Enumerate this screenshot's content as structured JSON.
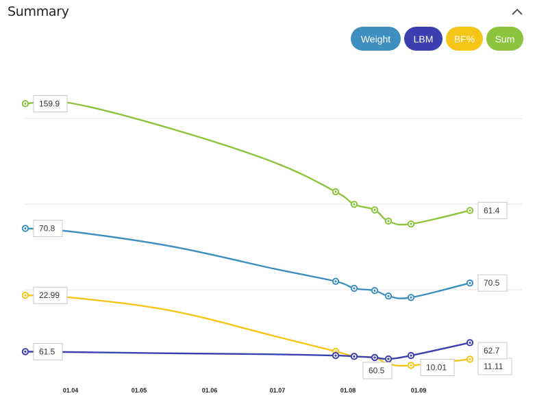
{
  "header": {
    "title": "Summary",
    "collapse_icon": "chevron-up-icon"
  },
  "legend": [
    {
      "label": "Weight",
      "color": "#3e8ebf"
    },
    {
      "label": "LBM",
      "color": "#3b3fb0"
    },
    {
      "label": "BF%",
      "color": "#f5c518"
    },
    {
      "label": "Sum",
      "color": "#8cc43e"
    }
  ],
  "chart_data": {
    "type": "line",
    "x_ticks": [
      "01.04",
      "01.05",
      "01.06",
      "01.07",
      "01.08",
      "01.09"
    ],
    "grid": true,
    "series": [
      {
        "name": "Sum",
        "color": "#8cc43e",
        "points": [
          159.9,
          160.3,
          142.0,
          118.0,
          97.0,
          88.0,
          84.0,
          76.0,
          74.0,
          69.0,
          75.0,
          83.6
        ],
        "marked": [
          0,
          4,
          5,
          6,
          7,
          8,
          9
        ],
        "labels": [
          {
            "i": 0,
            "text": "159.9"
          },
          {
            "i": 9,
            "text": "61.4"
          }
        ]
      },
      {
        "name": "Weight",
        "color": "#3e8ebf",
        "points": [
          70.8,
          68.6,
          58.0,
          42.0,
          33.0,
          28.0,
          26.4,
          22.5,
          21.5,
          24.0,
          23.2,
          31.8
        ],
        "marked": [
          0,
          4,
          5,
          6,
          7,
          8,
          9
        ],
        "labels": [
          {
            "i": 0,
            "text": "70.8"
          },
          {
            "i": 9,
            "text": "70.5"
          }
        ]
      },
      {
        "name": "BF%",
        "color": "#f5c518",
        "points": [
          22.99,
          21.5,
          12.0,
          -6.0,
          -17.0,
          -20.5,
          -21.4,
          -26.0,
          -27.0,
          -28.5,
          -29.2,
          -22.6
        ],
        "marked": [
          0,
          4,
          5,
          6,
          7,
          8,
          9
        ],
        "labels": [
          {
            "i": 0,
            "text": "22.99"
          },
          {
            "i": 8,
            "text": "10.01"
          },
          {
            "i": 9,
            "text": "11.11"
          }
        ]
      },
      {
        "name": "LBM",
        "color": "#3b3fb0",
        "points": [
          -17.2,
          -17.5,
          -18.4,
          -19.1,
          -20.0,
          -20.6,
          -21.4,
          -22.4,
          -20.0,
          -19.5,
          -18.6,
          -10.8
        ],
        "marked": [
          0,
          4,
          5,
          6,
          7,
          8,
          9
        ],
        "labels": [
          {
            "i": 0,
            "text": "61.5"
          },
          {
            "i": 6,
            "text": "60.5"
          },
          {
            "i": 9,
            "text": "62.7"
          }
        ]
      }
    ]
  }
}
